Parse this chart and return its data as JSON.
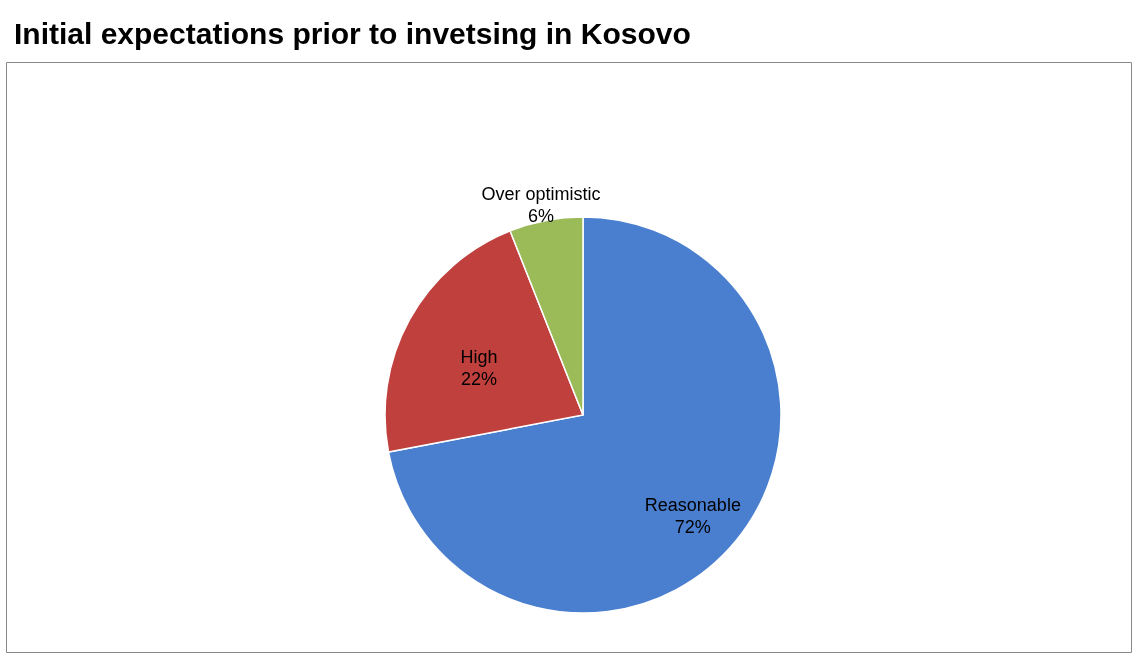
{
  "chart_data": {
    "type": "pie",
    "title": "Initial expectations prior to invetsing in Kosovo",
    "categories": [
      "Reasonable",
      "High",
      "Over optimistic"
    ],
    "values": [
      72,
      22,
      6
    ],
    "colors": [
      "#4a7fd0",
      "#c0403e",
      "#9bbb59"
    ],
    "value_labels": [
      "72%",
      "22%",
      "6%"
    ],
    "legend": false
  }
}
